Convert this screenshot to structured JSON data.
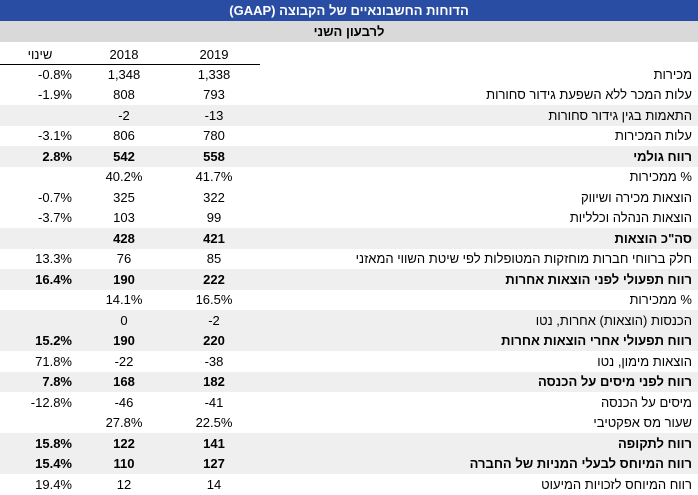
{
  "header": {
    "title": "הדוחות החשבונאיים של הקבוצה (GAAP)",
    "subtitle": "לרבעון השני"
  },
  "colors": {
    "title_bg": "#2a4da4",
    "title_text": "#ffffff",
    "subtitle_bg": "#d9d9d9",
    "row_shade": "#efefef"
  },
  "table": {
    "columns": {
      "label": "",
      "y2019": "2019",
      "y2018": "2018",
      "change": "שינוי"
    },
    "rows": [
      {
        "label": "מכירות",
        "change": "-0.8%",
        "y2018": "1,348",
        "y2019": "1,338",
        "bold": false,
        "shaded": false
      },
      {
        "label": "עלות המכר ללא השפעת גידור סחורות",
        "change": "-1.9%",
        "y2018": "808",
        "y2019": "793",
        "bold": false,
        "shaded": false
      },
      {
        "label": "התאמות בגין גידור סחורות",
        "change": "",
        "y2018": "-2",
        "y2019": "-13",
        "bold": false,
        "shaded": true
      },
      {
        "label": "עלות המכירות",
        "change": "-3.1%",
        "y2018": "806",
        "y2019": "780",
        "bold": false,
        "shaded": false
      },
      {
        "label": "רווח גולמי",
        "change": "2.8%",
        "y2018": "542",
        "y2019": "558",
        "bold": true,
        "shaded": true
      },
      {
        "label": "% ממכירות",
        "change": "",
        "y2018": "40.2%",
        "y2019": "41.7%",
        "bold": false,
        "shaded": false
      },
      {
        "label": "הוצאות מכירה ושיווק",
        "change": "-0.7%",
        "y2018": "325",
        "y2019": "322",
        "bold": false,
        "shaded": false
      },
      {
        "label": "הוצאות הנהלה וכלליות",
        "change": "-3.7%",
        "y2018": "103",
        "y2019": "99",
        "bold": false,
        "shaded": false
      },
      {
        "label": "סה\"כ הוצאות",
        "change": "",
        "y2018": "428",
        "y2019": "421",
        "bold": true,
        "shaded": true
      },
      {
        "label": "חלק ברווחי חברות מוחזקות המטופלות לפי שיטת השווי המאזני",
        "change": "13.3%",
        "y2018": "76",
        "y2019": "85",
        "bold": false,
        "shaded": false
      },
      {
        "label": "רווח תפעולי לפני הוצאות אחרות",
        "change": "16.4%",
        "y2018": "190",
        "y2019": "222",
        "bold": true,
        "shaded": true
      },
      {
        "label": "% ממכירות",
        "change": "",
        "y2018": "14.1%",
        "y2019": "16.5%",
        "bold": false,
        "shaded": false
      },
      {
        "label": "הכנסות (הוצאות) אחרות, נטו",
        "change": "",
        "y2018": "0",
        "y2019": "-2",
        "bold": false,
        "shaded": true
      },
      {
        "label": "רווח תפעולי אחרי הוצאות אחרות",
        "change": "15.2%",
        "y2018": "190",
        "y2019": "220",
        "bold": true,
        "shaded": true
      },
      {
        "label": "הוצאות מימון, נטו",
        "change": "71.8%",
        "y2018": "-22",
        "y2019": "-38",
        "bold": false,
        "shaded": false
      },
      {
        "label": "רווח לפני מיסים על הכנסה",
        "change": "7.8%",
        "y2018": "168",
        "y2019": "182",
        "bold": true,
        "shaded": true
      },
      {
        "label": "מיסים על הכנסה",
        "change": "-12.8%",
        "y2018": "-46",
        "y2019": "-41",
        "bold": false,
        "shaded": false
      },
      {
        "label": "שעור מס אפקטיבי",
        "change": "",
        "y2018": "27.8%",
        "y2019": "22.5%",
        "bold": false,
        "shaded": false
      },
      {
        "label": "רווח לתקופה",
        "change": "15.8%",
        "y2018": "122",
        "y2019": "141",
        "bold": true,
        "shaded": true
      },
      {
        "label": "רווח המיוחס לבעלי המניות של החברה",
        "change": "15.4%",
        "y2018": "110",
        "y2019": "127",
        "bold": true,
        "shaded": true
      },
      {
        "label": "רווח המיוחס לזכויות המיעוט",
        "change": "19.4%",
        "y2018": "12",
        "y2019": "14",
        "bold": false,
        "shaded": false
      }
    ]
  }
}
